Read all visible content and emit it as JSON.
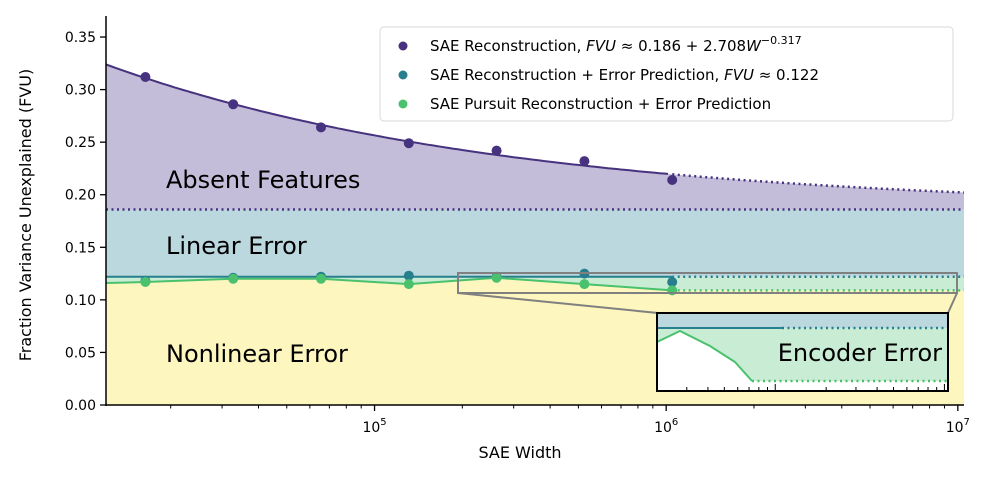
{
  "chart_data": {
    "type": "scatter",
    "xlabel": "SAE Width",
    "ylabel": "Fraction Variance Unexplained (FVU)",
    "x_scale": "log",
    "xlim": [
      12000,
      10500000
    ],
    "ylim": [
      0,
      0.37
    ],
    "x_ticks": [
      {
        "value": 100000,
        "base": "10",
        "exp": "5"
      },
      {
        "value": 1000000,
        "base": "10",
        "exp": "6"
      },
      {
        "value": 10000000,
        "base": "10",
        "exp": "7"
      }
    ],
    "y_ticks": [
      {
        "value": 0.0,
        "label": "0.00"
      },
      {
        "value": 0.05,
        "label": "0.05"
      },
      {
        "value": 0.1,
        "label": "0.10"
      },
      {
        "value": 0.15,
        "label": "0.15"
      },
      {
        "value": 0.2,
        "label": "0.20"
      },
      {
        "value": 0.25,
        "label": "0.25"
      },
      {
        "value": 0.3,
        "label": "0.30"
      },
      {
        "value": 0.35,
        "label": "0.35"
      }
    ],
    "fit": {
      "a": 0.186,
      "b": 2.708,
      "c": -0.317,
      "fit_until": 1048576
    },
    "error_prediction_level": 0.122,
    "series": [
      {
        "name_prefix": "SAE Reconstruction, ",
        "name_formula": "FVU",
        "name_eq": " ≈ 0.186 + 2.708",
        "name_var": "W",
        "name_sup": "−0.317",
        "color": "#46327e",
        "x": [
          16384,
          32768,
          65536,
          131072,
          262144,
          524288,
          1048576
        ],
        "y": [
          0.312,
          0.286,
          0.264,
          0.249,
          0.242,
          0.232,
          0.214
        ]
      },
      {
        "name_prefix": "SAE Reconstruction + Error Prediction, ",
        "name_formula": "FVU",
        "name_eq": " ≈ 0.122",
        "color": "#277f8e",
        "x": [
          16384,
          32768,
          65536,
          131072,
          262144,
          524288,
          1048576
        ],
        "y": [
          0.118,
          0.121,
          0.122,
          0.123,
          0.122,
          0.125,
          0.117
        ]
      },
      {
        "name": "SAE Pursuit Reconstruction + Error Prediction",
        "color": "#4ac16d",
        "x": [
          16384,
          32768,
          65536,
          131072,
          262144,
          524288,
          1048576
        ],
        "y": [
          0.117,
          0.12,
          0.12,
          0.115,
          0.121,
          0.115,
          0.109
        ]
      }
    ],
    "regions": [
      {
        "label": "Absent Features",
        "color": "#c3bdd9"
      },
      {
        "label": "Linear Error",
        "color": "#bcd8df"
      },
      {
        "label": "Nonlinear Error",
        "color": "#fef6bf"
      }
    ],
    "inset_label": "Encoder Error",
    "inset_color": "#c9ecd5",
    "legend_position": "top-right"
  }
}
